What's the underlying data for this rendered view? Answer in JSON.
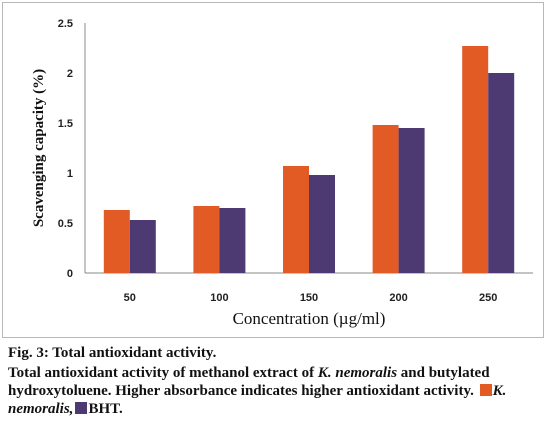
{
  "chart_data": {
    "type": "bar",
    "categories": [
      "50",
      "100",
      "150",
      "200",
      "250"
    ],
    "series": [
      {
        "name": "K. nemoralis",
        "color": "#E35B24",
        "values": [
          0.63,
          0.67,
          1.07,
          1.48,
          2.27
        ]
      },
      {
        "name": "BHT",
        "color": "#4E3A72",
        "values": [
          0.53,
          0.65,
          0.98,
          1.45,
          2.0
        ]
      }
    ],
    "yticks": [
      "0",
      "0.5",
      "1",
      "1.5",
      "2",
      "2.5"
    ],
    "ylim": [
      0,
      2.5
    ],
    "xlabel": "Concentration (µg/ml)",
    "ylabel": "Scavenging capacity (%)",
    "grid": false,
    "legend": "inline-in-caption"
  },
  "caption": {
    "title": "Fig. 3: Total antioxidant activity.",
    "text_part1": "Total antioxidant activity of methanol extract of ",
    "species_italic": "K. nemoralis",
    "text_part2": " and butylated hydroxytoluene. Higher absorbance indicates higher antioxidant activity. ",
    "legend_series1": "K. nemoralis,",
    "legend_series2": "BHT."
  }
}
